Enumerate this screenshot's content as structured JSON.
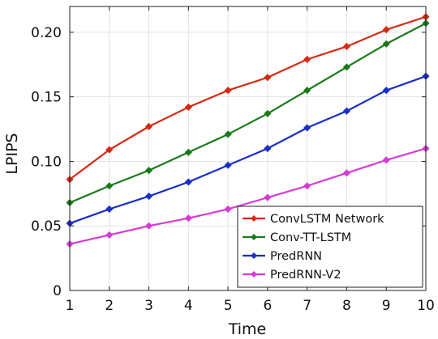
{
  "chart_data": {
    "type": "line",
    "xlabel": "Time",
    "ylabel": "LPIPS",
    "x": [
      1,
      2,
      3,
      4,
      5,
      6,
      7,
      8,
      9,
      10
    ],
    "xticks": [
      1,
      2,
      3,
      4,
      5,
      6,
      7,
      8,
      9,
      10
    ],
    "xtick_labels": [
      "1",
      "2",
      "3",
      "4",
      "5",
      "6",
      "7",
      "8",
      "9",
      "10"
    ],
    "xlim": [
      1,
      10
    ],
    "yticks": [
      0,
      0.05,
      0.1,
      0.15,
      0.2
    ],
    "ytick_labels": [
      "0",
      "0.05",
      "0.10",
      "0.15",
      "0.20"
    ],
    "ylim": [
      0,
      0.22
    ],
    "grid": true,
    "legend_position": "bottom-right",
    "series": [
      {
        "name": "ConvLSTM Network",
        "color": "#d42a14",
        "values": [
          0.086,
          0.109,
          0.127,
          0.142,
          0.155,
          0.165,
          0.179,
          0.189,
          0.202,
          0.212
        ]
      },
      {
        "name": "Conv-TT-LSTM",
        "color": "#1a7a1a",
        "values": [
          0.068,
          0.081,
          0.093,
          0.107,
          0.121,
          0.137,
          0.155,
          0.173,
          0.191,
          0.207
        ]
      },
      {
        "name": "PredRNN",
        "color": "#1a2ec8",
        "values": [
          0.052,
          0.063,
          0.073,
          0.084,
          0.097,
          0.11,
          0.126,
          0.139,
          0.155,
          0.166
        ]
      },
      {
        "name": "PredRNN-V2",
        "color": "#d63ad6",
        "values": [
          0.036,
          0.043,
          0.05,
          0.056,
          0.063,
          0.072,
          0.081,
          0.091,
          0.101,
          0.11
        ]
      }
    ]
  }
}
